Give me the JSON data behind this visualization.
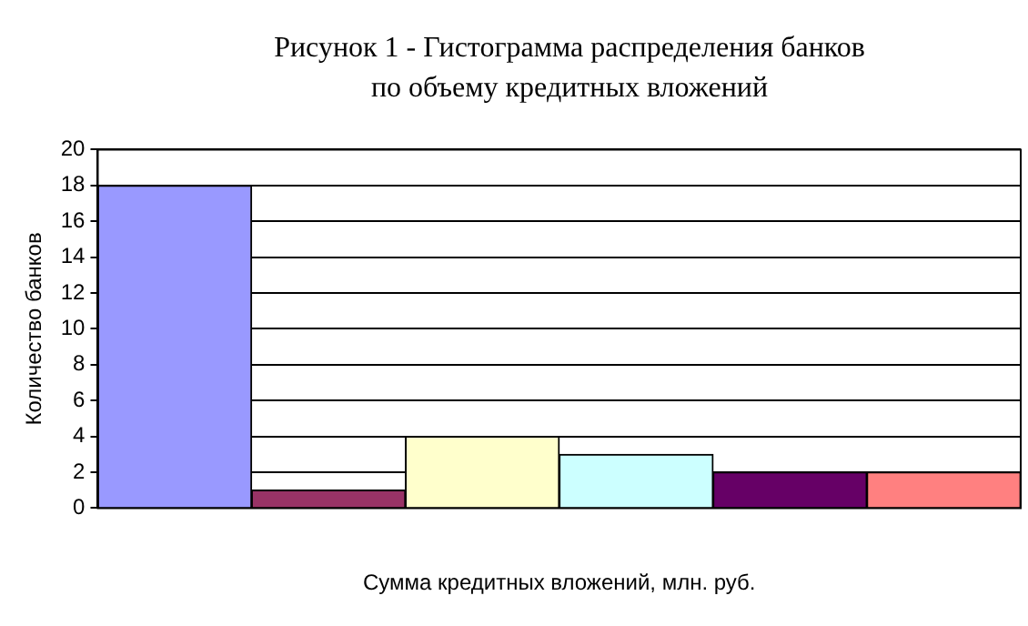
{
  "chart_data": {
    "type": "bar",
    "title": "Рисунок 1 - Гистограмма распределения банков по объему кредитных вложений",
    "xlabel": "Сумма кредитных вложений, млн. руб.",
    "ylabel": "Количество банков",
    "categories": [
      null,
      null,
      null,
      null,
      null,
      null
    ],
    "values": [
      18,
      1,
      4,
      3,
      2,
      2
    ],
    "colors": [
      "#9999ff",
      "#993366",
      "#ffffcc",
      "#ccffff",
      "#660066",
      "#ff8080"
    ],
    "ylim": [
      0,
      20
    ],
    "yticks": [
      0,
      2,
      4,
      6,
      8,
      10,
      12,
      14,
      16,
      18,
      20
    ],
    "grid": "y",
    "legend": false
  }
}
